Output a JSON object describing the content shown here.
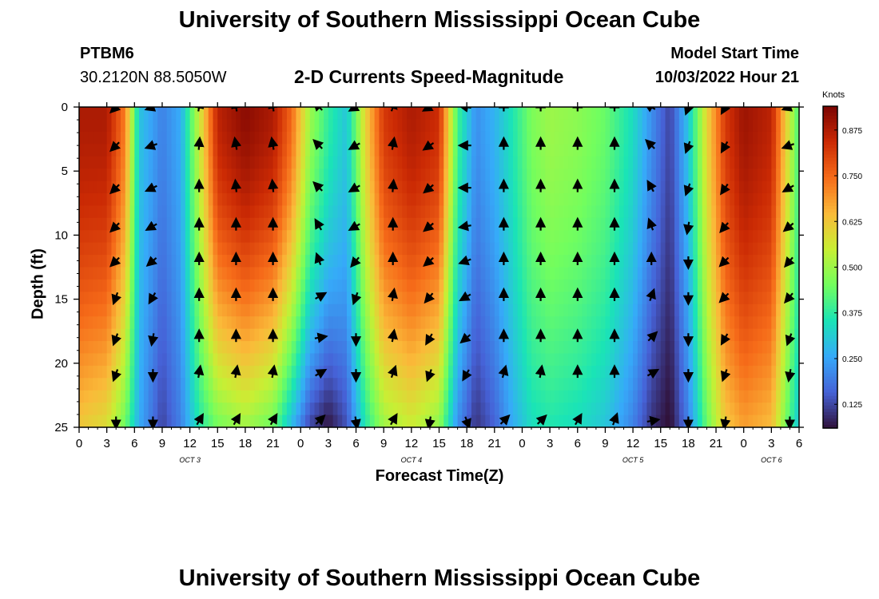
{
  "header": {
    "title": "University of Southern Mississippi Ocean Cube",
    "station": "PTBM6",
    "coordinates": "30.2120N  88.5050W",
    "subtitle": "2-D Currents Speed-Magnitude",
    "model_start_label": "Model Start Time",
    "model_start_value": "10/03/2022 Hour 21"
  },
  "footer": {
    "title": "University of Southern Mississippi Ocean Cube"
  },
  "colors": {
    "colormap": [
      "#30123b",
      "#4662d7",
      "#36aaf9",
      "#1ae4b6",
      "#72fe5e",
      "#c8ef34",
      "#faba39",
      "#f66b19",
      "#cb2a04",
      "#7a0403"
    ]
  },
  "chart_data": {
    "type": "heatmap",
    "title": "2-D Currents Speed-Magnitude",
    "xlabel": "Forecast Time(Z)",
    "ylabel": "Depth (ft)",
    "colorbar_label": "Knots",
    "colorbar_ticks": [
      "0.125",
      "0.250",
      "0.375",
      "0.500",
      "0.625",
      "0.750",
      "0.875"
    ],
    "colorbar_range": [
      0.06,
      0.94
    ],
    "x_range_hours": [
      0,
      78
    ],
    "x_tick_labels": [
      "0",
      "3",
      "6",
      "9",
      "12",
      "15",
      "18",
      "21",
      "0",
      "3",
      "6",
      "9",
      "12",
      "15",
      "18",
      "21",
      "0",
      "3",
      "6",
      "9",
      "12",
      "15",
      "18",
      "21",
      "0",
      "3",
      "6"
    ],
    "date_labels": [
      {
        "text": "OCT 3",
        "hour": 12
      },
      {
        "text": "OCT 4",
        "hour": 36
      },
      {
        "text": "OCT 5",
        "hour": 60
      },
      {
        "text": "OCT 6",
        "hour": 75
      }
    ],
    "ylim": [
      0,
      25
    ],
    "y_ticks": [
      0,
      5,
      10,
      15,
      20,
      25
    ],
    "surface_speed_profile": {
      "hours": [
        0,
        3,
        5,
        6.5,
        9,
        11,
        13,
        15,
        18,
        21,
        23,
        25,
        27,
        29,
        31,
        33,
        36,
        39,
        41,
        43,
        45,
        47,
        49,
        51,
        54,
        57,
        60,
        62,
        64,
        66,
        68,
        70,
        72,
        75,
        77,
        78
      ],
      "speeds": [
        0.88,
        0.88,
        0.72,
        0.3,
        0.2,
        0.26,
        0.55,
        0.86,
        0.92,
        0.88,
        0.75,
        0.5,
        0.38,
        0.3,
        0.6,
        0.82,
        0.88,
        0.84,
        0.4,
        0.22,
        0.27,
        0.36,
        0.46,
        0.5,
        0.48,
        0.44,
        0.34,
        0.22,
        0.12,
        0.3,
        0.6,
        0.82,
        0.9,
        0.86,
        0.55,
        0.4
      ]
    },
    "bottom_speed_profile": {
      "hours": [
        0,
        3,
        5,
        6.5,
        9,
        11,
        13,
        15,
        18,
        21,
        23,
        25,
        27,
        29,
        31,
        33,
        36,
        39,
        41,
        43,
        45,
        47,
        49,
        51,
        54,
        57,
        60,
        62,
        64,
        66,
        68,
        70,
        72,
        75,
        77,
        78
      ],
      "speeds": [
        0.62,
        0.58,
        0.44,
        0.26,
        0.12,
        0.2,
        0.36,
        0.45,
        0.5,
        0.44,
        0.28,
        0.12,
        0.06,
        0.14,
        0.36,
        0.5,
        0.55,
        0.48,
        0.22,
        0.1,
        0.16,
        0.26,
        0.34,
        0.36,
        0.34,
        0.3,
        0.2,
        0.1,
        0.05,
        0.2,
        0.44,
        0.62,
        0.68,
        0.64,
        0.4,
        0.3
      ]
    },
    "arrow_columns": [
      {
        "hour": 4,
        "directions": [
          225,
          225,
          225,
          225,
          225,
          200,
          200,
          200,
          180
        ]
      },
      {
        "hour": 8,
        "directions": [
          250,
          250,
          245,
          240,
          230,
          210,
          190,
          180,
          180
        ]
      },
      {
        "hour": 13,
        "directions": [
          10,
          5,
          0,
          0,
          0,
          0,
          0,
          10,
          30
        ]
      },
      {
        "hour": 17,
        "directions": [
          350,
          350,
          355,
          0,
          0,
          0,
          0,
          10,
          30
        ]
      },
      {
        "hour": 21,
        "directions": [
          350,
          350,
          355,
          0,
          0,
          0,
          0,
          10,
          30
        ]
      },
      {
        "hour": 26,
        "directions": [
          315,
          315,
          315,
          330,
          340,
          60,
          80,
          60,
          45
        ]
      },
      {
        "hour": 30,
        "directions": [
          240,
          240,
          240,
          240,
          220,
          200,
          180,
          180,
          170
        ]
      },
      {
        "hour": 34,
        "directions": [
          20,
          10,
          5,
          0,
          0,
          10,
          10,
          20,
          30
        ]
      },
      {
        "hour": 38,
        "directions": [
          240,
          235,
          230,
          230,
          230,
          220,
          210,
          200,
          190
        ]
      },
      {
        "hour": 42,
        "directions": [
          280,
          270,
          270,
          260,
          250,
          240,
          230,
          210,
          160
        ]
      },
      {
        "hour": 46,
        "directions": [
          0,
          0,
          0,
          0,
          0,
          0,
          0,
          15,
          45
        ]
      },
      {
        "hour": 50,
        "directions": [
          0,
          0,
          0,
          0,
          0,
          0,
          0,
          10,
          45
        ]
      },
      {
        "hour": 54,
        "directions": [
          0,
          0,
          0,
          0,
          0,
          0,
          0,
          0,
          30
        ]
      },
      {
        "hour": 58,
        "directions": [
          0,
          0,
          0,
          0,
          0,
          0,
          0,
          0,
          20
        ]
      },
      {
        "hour": 62,
        "directions": [
          300,
          315,
          330,
          340,
          0,
          20,
          45,
          60,
          80
        ]
      },
      {
        "hour": 66,
        "directions": [
          200,
          200,
          200,
          190,
          180,
          180,
          180,
          180,
          180
        ]
      },
      {
        "hour": 70,
        "directions": [
          210,
          210,
          215,
          220,
          225,
          225,
          210,
          200,
          190
        ]
      },
      {
        "hour": 77,
        "directions": [
          250,
          250,
          240,
          230,
          220,
          220,
          200,
          190,
          180
        ]
      }
    ],
    "arrow_depths": [
      0,
      3,
      6.3,
      9.3,
      12,
      14.8,
      18,
      20.8,
      24.5
    ]
  }
}
